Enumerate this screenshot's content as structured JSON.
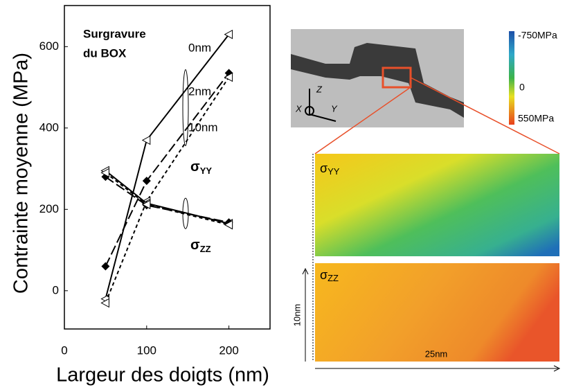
{
  "chart_data": {
    "type": "line",
    "title_lines": [
      "Surgravure",
      "du BOX"
    ],
    "x_label": "Largeur des doigts (nm)",
    "y_label": "Contrainte moyenne (MPa)",
    "xlim": [
      0,
      250
    ],
    "xticks": [
      0,
      100,
      200
    ],
    "ylim": [
      -94,
      701
    ],
    "yticks": [
      0,
      200,
      400,
      600
    ],
    "x": [
      50,
      100,
      200
    ],
    "series": [
      {
        "name": "0nm",
        "color": "#000000",
        "marker": "triangle",
        "dash": "solid",
        "values": [
          -20,
          370,
          630
        ]
      },
      {
        "name": "2nm",
        "color": "#000000",
        "marker": "diamond",
        "dash": "long",
        "values": [
          60,
          270,
          535
        ]
      },
      {
        "name": "10nm",
        "color": "#000000",
        "marker": "triangle",
        "dash": "short",
        "values": [
          -30,
          220,
          525
        ]
      },
      {
        "color": "#000000",
        "marker": "triangle",
        "dash": "solid",
        "values": [
          295,
          215,
          165
        ]
      },
      {
        "color": "#000000",
        "marker": "diamond",
        "dash": "long",
        "values": [
          280,
          210,
          168
        ]
      },
      {
        "color": "#000000",
        "marker": "triangle",
        "dash": "short",
        "values": [
          290,
          212,
          162
        ]
      }
    ],
    "annotations": [
      {
        "symbol": "σ",
        "sub": "YY"
      },
      {
        "symbol": "σ",
        "sub": "ZZ"
      }
    ]
  },
  "figure": {
    "micrograph_axes": [
      "X",
      "Y",
      "Z"
    ],
    "colorbar_labels": [
      "-750MPa",
      "0",
      "550MPa"
    ],
    "maps": [
      {
        "symbol": "σ",
        "sub": "YY"
      },
      {
        "symbol": "σ",
        "sub": "ZZ"
      }
    ],
    "height_label": "10nm",
    "width_label": "25nm"
  }
}
